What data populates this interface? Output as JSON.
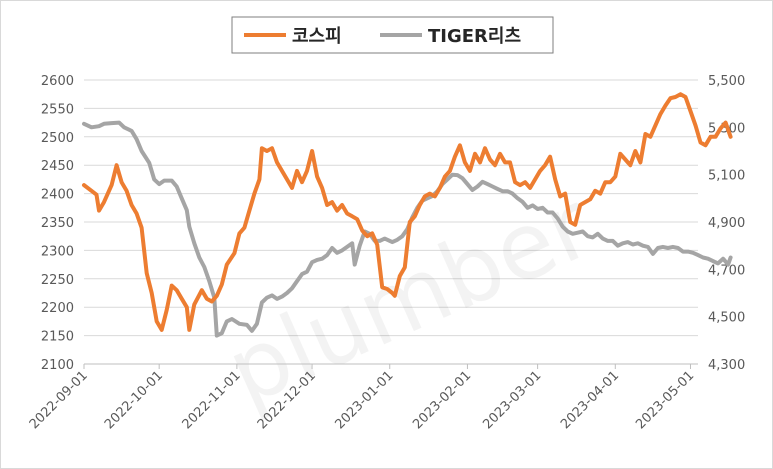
{
  "watermark_text": "plumber",
  "chart_data": {
    "type": "line",
    "grid": true,
    "legend_position": "top-center",
    "x_axis": {
      "type": "date",
      "min": "2022-09-01",
      "max": "2023-05-04",
      "ticks": [
        "2022-09-01",
        "2022-10-01",
        "2022-11-01",
        "2022-12-01",
        "2023-01-01",
        "2023-02-01",
        "2023-03-01",
        "2023-04-01",
        "2023-05-01"
      ],
      "tick_labels": [
        "2022-09-01",
        "2022-10-01",
        "2022-11-01",
        "2022-12-01",
        "2023-01-01",
        "2023-02-01",
        "2023-03-01",
        "2023-04-01",
        "2023-05-01"
      ]
    },
    "y_left": {
      "min": 2100,
      "max": 2600,
      "ticks": [
        2100,
        2150,
        2200,
        2250,
        2300,
        2350,
        2400,
        2450,
        2500,
        2550,
        2600
      ],
      "tick_labels": [
        "2100",
        "2150",
        "2200",
        "2250",
        "2300",
        "2350",
        "2400",
        "2450",
        "2500",
        "2550",
        "2600"
      ]
    },
    "y_right": {
      "min": 4300,
      "max": 5500,
      "ticks": [
        4300,
        4500,
        4700,
        4900,
        5100,
        5300,
        5500
      ],
      "tick_labels": [
        "4,300",
        "4,500",
        "4,700",
        "4,900",
        "5,100",
        "5,300",
        "5,500"
      ]
    },
    "series": [
      {
        "name": "코스피",
        "color": "#ED7D31",
        "axis": "left",
        "points": [
          [
            "2022-09-01",
            2415
          ],
          [
            "2022-09-04",
            2405
          ],
          [
            "2022-09-06",
            2398
          ],
          [
            "2022-09-07",
            2370
          ],
          [
            "2022-09-09",
            2385
          ],
          [
            "2022-09-12",
            2415
          ],
          [
            "2022-09-14",
            2450
          ],
          [
            "2022-09-16",
            2420
          ],
          [
            "2022-09-18",
            2405
          ],
          [
            "2022-09-20",
            2380
          ],
          [
            "2022-09-22",
            2365
          ],
          [
            "2022-09-24",
            2340
          ],
          [
            "2022-09-26",
            2260
          ],
          [
            "2022-09-28",
            2225
          ],
          [
            "2022-09-30",
            2175
          ],
          [
            "2022-10-02",
            2160
          ],
          [
            "2022-10-04",
            2195
          ],
          [
            "2022-10-06",
            2238
          ],
          [
            "2022-10-08",
            2230
          ],
          [
            "2022-10-10",
            2215
          ],
          [
            "2022-10-12",
            2200
          ],
          [
            "2022-10-13",
            2160
          ],
          [
            "2022-10-15",
            2205
          ],
          [
            "2022-10-18",
            2230
          ],
          [
            "2022-10-20",
            2215
          ],
          [
            "2022-10-22",
            2210
          ],
          [
            "2022-10-24",
            2220
          ],
          [
            "2022-10-26",
            2240
          ],
          [
            "2022-10-28",
            2275
          ],
          [
            "2022-10-31",
            2295
          ],
          [
            "2022-11-02",
            2330
          ],
          [
            "2022-11-04",
            2340
          ],
          [
            "2022-11-06",
            2370
          ],
          [
            "2022-11-08",
            2400
          ],
          [
            "2022-11-10",
            2425
          ],
          [
            "2022-11-11",
            2480
          ],
          [
            "2022-11-13",
            2475
          ],
          [
            "2022-11-15",
            2480
          ],
          [
            "2022-11-17",
            2455
          ],
          [
            "2022-11-19",
            2440
          ],
          [
            "2022-11-21",
            2425
          ],
          [
            "2022-11-23",
            2410
          ],
          [
            "2022-11-25",
            2440
          ],
          [
            "2022-11-27",
            2420
          ],
          [
            "2022-11-29",
            2440
          ],
          [
            "2022-12-01",
            2475
          ],
          [
            "2022-12-03",
            2430
          ],
          [
            "2022-12-05",
            2410
          ],
          [
            "2022-12-07",
            2380
          ],
          [
            "2022-12-09",
            2385
          ],
          [
            "2022-12-11",
            2370
          ],
          [
            "2022-12-13",
            2380
          ],
          [
            "2022-12-15",
            2365
          ],
          [
            "2022-12-17",
            2360
          ],
          [
            "2022-12-19",
            2355
          ],
          [
            "2022-12-21",
            2335
          ],
          [
            "2022-12-23",
            2325
          ],
          [
            "2022-12-25",
            2330
          ],
          [
            "2022-12-27",
            2310
          ],
          [
            "2022-12-29",
            2235
          ],
          [
            "2022-12-31",
            2232
          ],
          [
            "2023-01-02",
            2225
          ],
          [
            "2023-01-03",
            2220
          ],
          [
            "2023-01-05",
            2255
          ],
          [
            "2023-01-07",
            2270
          ],
          [
            "2023-01-09",
            2350
          ],
          [
            "2023-01-11",
            2360
          ],
          [
            "2023-01-13",
            2380
          ],
          [
            "2023-01-15",
            2395
          ],
          [
            "2023-01-17",
            2400
          ],
          [
            "2023-01-19",
            2395
          ],
          [
            "2023-01-21",
            2410
          ],
          [
            "2023-01-23",
            2430
          ],
          [
            "2023-01-25",
            2440
          ],
          [
            "2023-01-27",
            2465
          ],
          [
            "2023-01-29",
            2485
          ],
          [
            "2023-01-31",
            2455
          ],
          [
            "2023-02-02",
            2440
          ],
          [
            "2023-02-04",
            2470
          ],
          [
            "2023-02-06",
            2455
          ],
          [
            "2023-02-08",
            2480
          ],
          [
            "2023-02-10",
            2460
          ],
          [
            "2023-02-12",
            2450
          ],
          [
            "2023-02-14",
            2470
          ],
          [
            "2023-02-16",
            2455
          ],
          [
            "2023-02-18",
            2455
          ],
          [
            "2023-02-20",
            2420
          ],
          [
            "2023-02-22",
            2415
          ],
          [
            "2023-02-24",
            2420
          ],
          [
            "2023-02-26",
            2410
          ],
          [
            "2023-02-28",
            2425
          ],
          [
            "2023-03-02",
            2440
          ],
          [
            "2023-03-04",
            2450
          ],
          [
            "2023-03-06",
            2465
          ],
          [
            "2023-03-08",
            2425
          ],
          [
            "2023-03-10",
            2395
          ],
          [
            "2023-03-12",
            2400
          ],
          [
            "2023-03-14",
            2350
          ],
          [
            "2023-03-16",
            2345
          ],
          [
            "2023-03-18",
            2380
          ],
          [
            "2023-03-20",
            2385
          ],
          [
            "2023-03-22",
            2390
          ],
          [
            "2023-03-24",
            2405
          ],
          [
            "2023-03-26",
            2400
          ],
          [
            "2023-03-28",
            2420
          ],
          [
            "2023-03-30",
            2420
          ],
          [
            "2023-04-01",
            2430
          ],
          [
            "2023-04-03",
            2470
          ],
          [
            "2023-04-05",
            2460
          ],
          [
            "2023-04-07",
            2450
          ],
          [
            "2023-04-09",
            2475
          ],
          [
            "2023-04-11",
            2455
          ],
          [
            "2023-04-13",
            2505
          ],
          [
            "2023-04-15",
            2500
          ],
          [
            "2023-04-17",
            2520
          ],
          [
            "2023-04-19",
            2540
          ],
          [
            "2023-04-21",
            2555
          ],
          [
            "2023-04-23",
            2568
          ],
          [
            "2023-04-25",
            2570
          ],
          [
            "2023-04-27",
            2575
          ],
          [
            "2023-04-29",
            2570
          ],
          [
            "2023-05-01",
            2545
          ],
          [
            "2023-05-03",
            2520
          ],
          [
            "2023-05-05",
            2490
          ],
          [
            "2023-05-07",
            2485
          ],
          [
            "2023-05-09",
            2500
          ],
          [
            "2023-05-11",
            2500
          ],
          [
            "2023-05-13",
            2515
          ],
          [
            "2023-05-15",
            2525
          ],
          [
            "2023-05-17",
            2500
          ]
        ]
      },
      {
        "name": "TIGER리츠",
        "color": "#A5A5A5",
        "axis": "right",
        "points": [
          [
            "2022-09-01",
            5315
          ],
          [
            "2022-09-04",
            5300
          ],
          [
            "2022-09-07",
            5305
          ],
          [
            "2022-09-09",
            5315
          ],
          [
            "2022-09-12",
            5318
          ],
          [
            "2022-09-15",
            5320
          ],
          [
            "2022-09-17",
            5300
          ],
          [
            "2022-09-20",
            5285
          ],
          [
            "2022-09-22",
            5250
          ],
          [
            "2022-09-24",
            5200
          ],
          [
            "2022-09-27",
            5150
          ],
          [
            "2022-09-29",
            5080
          ],
          [
            "2022-10-01",
            5060
          ],
          [
            "2022-10-03",
            5075
          ],
          [
            "2022-10-06",
            5075
          ],
          [
            "2022-10-08",
            5050
          ],
          [
            "2022-10-10",
            5000
          ],
          [
            "2022-10-12",
            4950
          ],
          [
            "2022-10-13",
            4880
          ],
          [
            "2022-10-15",
            4810
          ],
          [
            "2022-10-17",
            4750
          ],
          [
            "2022-10-19",
            4710
          ],
          [
            "2022-10-21",
            4650
          ],
          [
            "2022-10-23",
            4580
          ],
          [
            "2022-10-24",
            4420
          ],
          [
            "2022-10-26",
            4430
          ],
          [
            "2022-10-28",
            4480
          ],
          [
            "2022-10-30",
            4490
          ],
          [
            "2022-11-02",
            4470
          ],
          [
            "2022-11-05",
            4465
          ],
          [
            "2022-11-07",
            4440
          ],
          [
            "2022-11-09",
            4470
          ],
          [
            "2022-11-11",
            4560
          ],
          [
            "2022-11-13",
            4580
          ],
          [
            "2022-11-15",
            4590
          ],
          [
            "2022-11-17",
            4575
          ],
          [
            "2022-11-19",
            4585
          ],
          [
            "2022-11-21",
            4600
          ],
          [
            "2022-11-23",
            4620
          ],
          [
            "2022-11-25",
            4650
          ],
          [
            "2022-11-27",
            4680
          ],
          [
            "2022-11-29",
            4690
          ],
          [
            "2022-12-01",
            4730
          ],
          [
            "2022-12-03",
            4740
          ],
          [
            "2022-12-05",
            4745
          ],
          [
            "2022-12-07",
            4760
          ],
          [
            "2022-12-09",
            4790
          ],
          [
            "2022-12-11",
            4770
          ],
          [
            "2022-12-13",
            4780
          ],
          [
            "2022-12-15",
            4795
          ],
          [
            "2022-12-17",
            4810
          ],
          [
            "2022-12-18",
            4720
          ],
          [
            "2022-12-20",
            4800
          ],
          [
            "2022-12-22",
            4860
          ],
          [
            "2022-12-24",
            4850
          ],
          [
            "2022-12-26",
            4820
          ],
          [
            "2022-12-28",
            4820
          ],
          [
            "2022-12-30",
            4830
          ],
          [
            "2023-01-02",
            4815
          ],
          [
            "2023-01-04",
            4825
          ],
          [
            "2023-01-06",
            4840
          ],
          [
            "2023-01-08",
            4870
          ],
          [
            "2023-01-10",
            4920
          ],
          [
            "2023-01-12",
            4960
          ],
          [
            "2023-01-14",
            4990
          ],
          [
            "2023-01-16",
            5000
          ],
          [
            "2023-01-18",
            5010
          ],
          [
            "2023-01-20",
            5030
          ],
          [
            "2023-01-22",
            5060
          ],
          [
            "2023-01-24",
            5080
          ],
          [
            "2023-01-26",
            5100
          ],
          [
            "2023-01-28",
            5098
          ],
          [
            "2023-01-30",
            5085
          ],
          [
            "2023-02-01",
            5060
          ],
          [
            "2023-02-03",
            5035
          ],
          [
            "2023-02-05",
            5050
          ],
          [
            "2023-02-07",
            5070
          ],
          [
            "2023-02-09",
            5060
          ],
          [
            "2023-02-11",
            5050
          ],
          [
            "2023-02-13",
            5040
          ],
          [
            "2023-02-15",
            5030
          ],
          [
            "2023-02-17",
            5030
          ],
          [
            "2023-02-19",
            5020
          ],
          [
            "2023-02-21",
            5000
          ],
          [
            "2023-02-23",
            4985
          ],
          [
            "2023-02-25",
            4960
          ],
          [
            "2023-02-27",
            4970
          ],
          [
            "2023-03-01",
            4955
          ],
          [
            "2023-03-03",
            4960
          ],
          [
            "2023-03-05",
            4940
          ],
          [
            "2023-03-07",
            4940
          ],
          [
            "2023-03-09",
            4915
          ],
          [
            "2023-03-11",
            4880
          ],
          [
            "2023-03-13",
            4860
          ],
          [
            "2023-03-15",
            4850
          ],
          [
            "2023-03-17",
            4855
          ],
          [
            "2023-03-19",
            4860
          ],
          [
            "2023-03-21",
            4840
          ],
          [
            "2023-03-23",
            4835
          ],
          [
            "2023-03-25",
            4850
          ],
          [
            "2023-03-27",
            4830
          ],
          [
            "2023-03-29",
            4820
          ],
          [
            "2023-03-31",
            4820
          ],
          [
            "2023-04-02",
            4800
          ],
          [
            "2023-04-04",
            4810
          ],
          [
            "2023-04-06",
            4815
          ],
          [
            "2023-04-08",
            4805
          ],
          [
            "2023-04-10",
            4810
          ],
          [
            "2023-04-12",
            4800
          ],
          [
            "2023-04-14",
            4795
          ],
          [
            "2023-04-16",
            4765
          ],
          [
            "2023-04-18",
            4790
          ],
          [
            "2023-04-20",
            4795
          ],
          [
            "2023-04-22",
            4790
          ],
          [
            "2023-04-24",
            4795
          ],
          [
            "2023-04-26",
            4790
          ],
          [
            "2023-04-28",
            4775
          ],
          [
            "2023-04-30",
            4775
          ],
          [
            "2023-05-02",
            4770
          ],
          [
            "2023-05-04",
            4760
          ],
          [
            "2023-05-06",
            4750
          ],
          [
            "2023-05-08",
            4745
          ],
          [
            "2023-05-10",
            4735
          ],
          [
            "2023-05-12",
            4725
          ],
          [
            "2023-05-14",
            4745
          ],
          [
            "2023-05-16",
            4720
          ],
          [
            "2023-05-17",
            4750
          ]
        ]
      }
    ]
  }
}
